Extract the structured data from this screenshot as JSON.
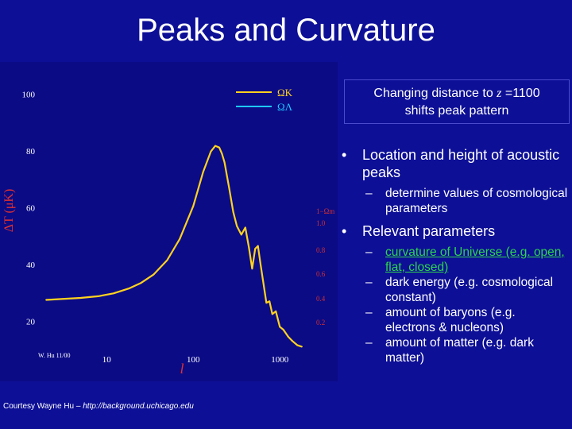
{
  "slide": {
    "title": "Peaks and Curvature",
    "callout": {
      "line1_prefix": "Changing distance to ",
      "line1_var": "z",
      "line1_suffix": " =1100",
      "line2": "shifts peak pattern"
    },
    "bullets": [
      {
        "text": "Location and height of acoustic peaks",
        "subs": [
          {
            "text": "determine values of cosmological parameters"
          }
        ]
      },
      {
        "text": "Relevant parameters",
        "subs": [
          {
            "text": "curvature of Universe (e.g. open, flat, closed)"
          },
          {
            "text": "dark energy (e.g. cosmological constant)"
          },
          {
            "text": "amount of baryons (e.g. electrons & nucleons)"
          },
          {
            "text": "amount of matter (e.g. dark matter)"
          }
        ]
      }
    ],
    "bullet_glyph": "•",
    "dash_glyph": "–",
    "courtesy_prefix": "Courtesy Wayne Hu – ",
    "courtesy_url": "http://background.uchicago.edu"
  },
  "colors": {
    "background": "#0d0f96",
    "plot_background": "#0b0b86",
    "curve": "#ffd21e",
    "omega_k_legend": "#ffd21e",
    "omega_lambda_legend": "#1ec8ff",
    "axis_text": "#ffffff",
    "ylabel": "#e03030",
    "right_scale": "#d03030",
    "link": "#2bd64c"
  },
  "chart_data": {
    "type": "line",
    "x_scale": "log",
    "xlim": [
      2,
      2000
    ],
    "ylim": [
      10,
      108
    ],
    "xlabel": "l",
    "ylabel": "ΔT (μK)",
    "x_ticks": [
      "10",
      "100",
      "1000"
    ],
    "y_ticks": [
      "20",
      "40",
      "60",
      "80",
      "100"
    ],
    "legend": [
      {
        "label": "ΩK",
        "color": "#ffd21e"
      },
      {
        "label": "ΩΛ",
        "color": "#1ec8ff"
      }
    ],
    "legend_position": "top-right",
    "right_scale_label": "1−Ωm",
    "right_scale_ticks": [
      "1.0",
      "0.8",
      "0.6",
      "0.4",
      "0.2"
    ],
    "corner_note": "W. Hu 11/00",
    "series": [
      {
        "x": [
          2,
          3,
          5,
          8,
          12,
          18,
          25,
          35,
          50,
          70,
          100,
          130,
          160,
          180,
          200,
          215,
          230,
          260,
          290,
          320,
          360,
          400,
          440,
          480,
          520,
          560,
          600,
          650,
          700,
          760,
          820,
          900,
          1000,
          1100,
          1250,
          1400,
          1600,
          1800
        ],
        "y": [
          27.5,
          27.8,
          28.2,
          28.8,
          29.8,
          31.5,
          33.5,
          36.5,
          41.5,
          49.0,
          60.5,
          72.5,
          79.8,
          81.8,
          81.2,
          79.0,
          76.0,
          67.0,
          58.5,
          53.5,
          50.5,
          53.0,
          46.0,
          38.5,
          45.5,
          46.5,
          40.0,
          33.0,
          26.5,
          27.0,
          22.5,
          23.5,
          18.0,
          17.0,
          14.5,
          13.0,
          11.5,
          11.0
        ]
      }
    ]
  }
}
